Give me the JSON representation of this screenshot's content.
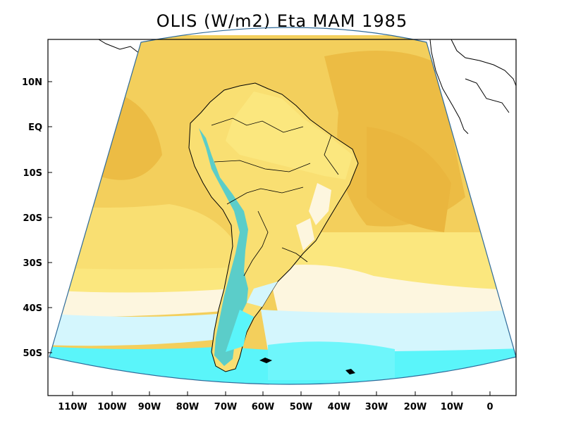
{
  "title": "OLIS (W/m2) Eta MAM 1985",
  "axes": {
    "y_ticks": [
      "10N",
      "EQ",
      "10S",
      "20S",
      "30S",
      "40S",
      "50S"
    ],
    "x_ticks": [
      "110W",
      "100W",
      "90W",
      "80W",
      "70W",
      "60W",
      "50W",
      "40W",
      "30W",
      "20W",
      "10W",
      "0"
    ]
  },
  "colors": {
    "frame": "#000000",
    "ocean_yellow": "#f5d15a",
    "ocean_orange": "#ecbd45",
    "light_yellow": "#fbe77e",
    "cream": "#fdf6df",
    "light_cyan": "#d4f6fd",
    "cyan": "#5af5fa",
    "mid_cyan": "#3fcad8"
  }
}
